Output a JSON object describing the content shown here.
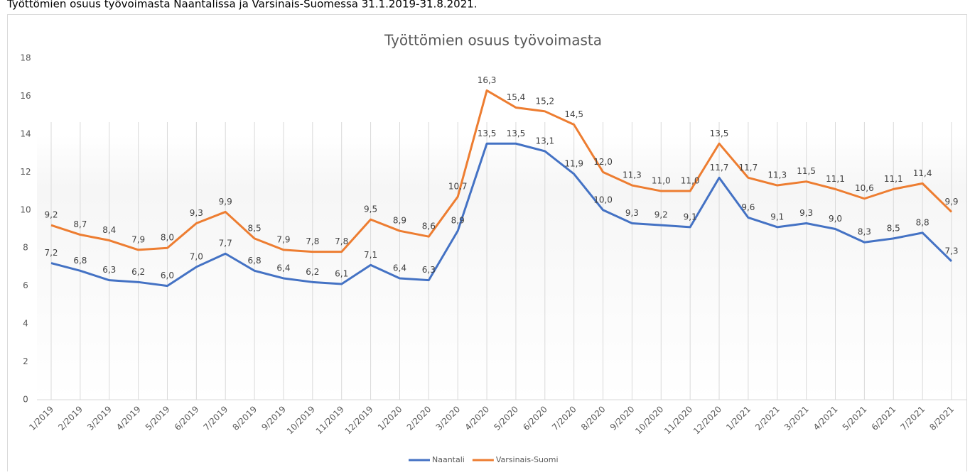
{
  "heading": "Työttömien osuus työvoimasta Naantalissa ja Varsinais-Suomessa 31.1.2019-31.8.2021.",
  "chart_data": {
    "type": "line",
    "title": "Työttömien osuus työvoimasta",
    "categories": [
      "1/2019",
      "2/2019",
      "3/2019",
      "4/2019",
      "5/2019",
      "6/2019",
      "7/2019",
      "8/2019",
      "9/2019",
      "10/2019",
      "11/2019",
      "12/2019",
      "1/2020",
      "2/2020",
      "3/2020",
      "4/2020",
      "5/2020",
      "6/2020",
      "7/2020",
      "8/2020",
      "9/2020",
      "10/2020",
      "11/2020",
      "12/2020",
      "1/2021",
      "2/2021",
      "3/2021",
      "4/2021",
      "5/2021",
      "6/2021",
      "7/2021",
      "8/2021"
    ],
    "series": [
      {
        "name": "Naantali",
        "color": "#4472c4",
        "values": [
          7.2,
          6.8,
          6.3,
          6.2,
          6.0,
          7.0,
          7.7,
          6.8,
          6.4,
          6.2,
          6.1,
          7.1,
          6.4,
          6.3,
          8.9,
          13.5,
          13.5,
          13.1,
          11.9,
          10.0,
          9.3,
          9.2,
          9.1,
          11.7,
          9.6,
          9.1,
          9.3,
          9.0,
          8.3,
          8.5,
          8.8,
          7.3
        ],
        "value_labels": [
          "7,2",
          "6,8",
          "6,3",
          "6,2",
          "6,0",
          "7,0",
          "7,7",
          "6,8",
          "6,4",
          "6,2",
          "6,1",
          "7,1",
          "6,4",
          "6,3",
          "8,9",
          "13,5",
          "13,5",
          "13,1",
          "11,9",
          "10,0",
          "9,3",
          "9,2",
          "9,1",
          "11,7",
          "9,6",
          "9,1",
          "9,3",
          "9,0",
          "8,3",
          "8,5",
          "8,8",
          "7,3"
        ]
      },
      {
        "name": "Varsinais-Suomi",
        "color": "#ed7d31",
        "values": [
          9.2,
          8.7,
          8.4,
          7.9,
          8.0,
          9.3,
          9.9,
          8.5,
          7.9,
          7.8,
          7.8,
          9.5,
          8.9,
          8.6,
          10.7,
          16.3,
          15.4,
          15.2,
          14.5,
          12.0,
          11.3,
          11.0,
          11.0,
          13.5,
          11.7,
          11.3,
          11.5,
          11.1,
          10.6,
          11.1,
          11.4,
          9.9
        ],
        "value_labels": [
          "9,2",
          "8,7",
          "8,4",
          "7,9",
          "8,0",
          "9,3",
          "9,9",
          "8,5",
          "7,9",
          "7,8",
          "7,8",
          "9,5",
          "8,9",
          "8,6",
          "10,7",
          "16,3",
          "15,4",
          "15,2",
          "14,5",
          "12,0",
          "11,3",
          "11,0",
          "11,0",
          "13,5",
          "11,7",
          "11,3",
          "11,5",
          "11,1",
          "10,6",
          "11,1",
          "11,4",
          "9,9"
        ]
      }
    ],
    "ylim": [
      0,
      18
    ],
    "yticks": [
      0,
      2,
      4,
      6,
      8,
      10,
      12,
      14,
      16,
      18
    ],
    "grid": true,
    "legend": "bottom"
  }
}
